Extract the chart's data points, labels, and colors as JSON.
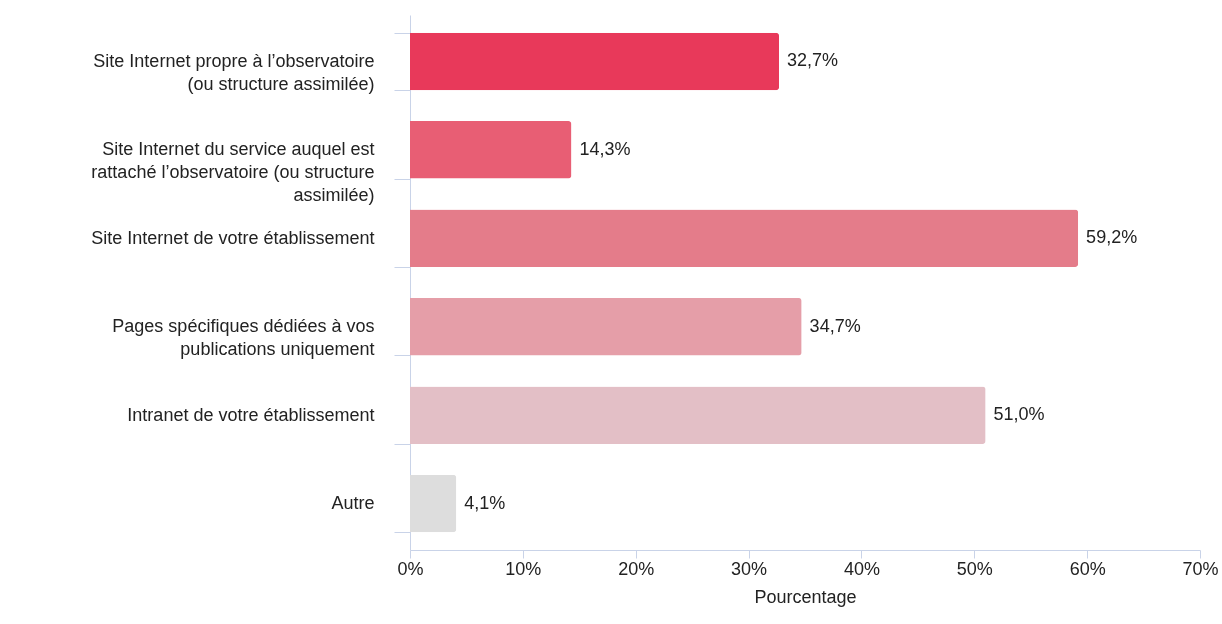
{
  "chart_data": {
    "type": "bar",
    "orientation": "horizontal",
    "xlabel": "Pourcentage",
    "categories": [
      "Site Internet propre à l’observatoire (ou structure assimilée)",
      "Site Internet du service auquel est rattaché l’observatoire (ou structure assimilée)",
      "Site Internet de votre établissement",
      "Pages spécifiques dédiées à vos publications uniquement",
      "Intranet de votre établissement",
      "Autre"
    ],
    "values": [
      32.7,
      14.3,
      59.2,
      34.7,
      51.0,
      4.1
    ],
    "value_labels": [
      "32,7%",
      "14,3%",
      "59,2%",
      "34,7%",
      "51,0%",
      "4,1%"
    ],
    "colors": [
      "#e8395a",
      "#e85e74",
      "#e47c8a",
      "#e59ea8",
      "#e3bfc6",
      "#dddddd"
    ],
    "xlim": [
      0,
      70
    ],
    "xticks": [
      {
        "value": 0,
        "label": "0%"
      },
      {
        "value": 10,
        "label": "10%"
      },
      {
        "value": 20,
        "label": "20%"
      },
      {
        "value": 30,
        "label": "30%"
      },
      {
        "value": 40,
        "label": "40%"
      },
      {
        "value": 50,
        "label": "50%"
      },
      {
        "value": 60,
        "label": "60%"
      },
      {
        "value": 70,
        "label": "70%"
      }
    ],
    "grid": false
  }
}
